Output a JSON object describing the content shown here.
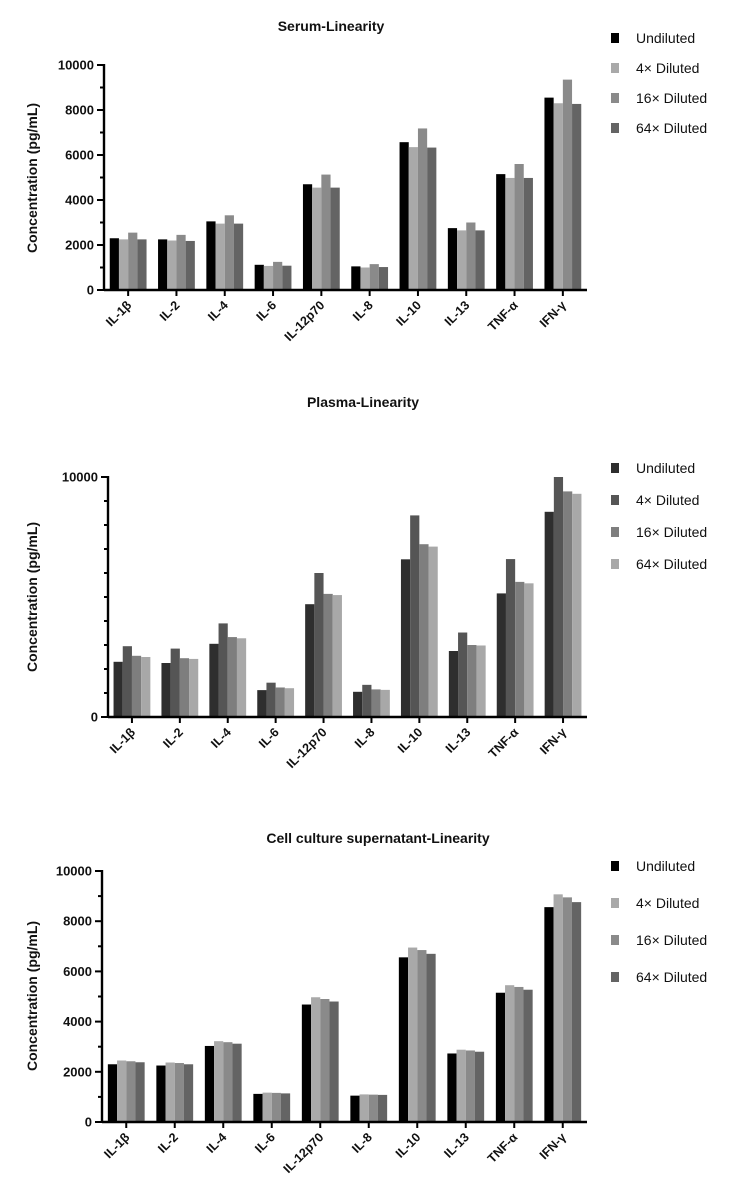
{
  "chart_data": [
    {
      "type": "bar",
      "title": "Serum-Linearity",
      "xlabel": "",
      "ylabel": "Concentration (pg/mL)",
      "ylim": [
        0,
        10000
      ],
      "yticks": [
        "0",
        "2000",
        "4000",
        "6000",
        "8000",
        "10000"
      ],
      "legend_position": "top-right",
      "categories": [
        "IL-1β",
        "IL-2",
        "IL-4",
        "IL-6",
        "IL-12p70",
        "IL-8",
        "IL-10",
        "IL-13",
        "TNF-α",
        "IFN-γ"
      ],
      "series": [
        {
          "name": "Undiluted",
          "color": "#000000",
          "values": [
            2300,
            2250,
            3050,
            1120,
            4700,
            1050,
            6570,
            2750,
            5150,
            8550
          ]
        },
        {
          "name": "4× Diluted",
          "color": "#a9a9a9",
          "values": [
            2250,
            2200,
            2950,
            1070,
            4550,
            1000,
            6350,
            2650,
            4980,
            8300
          ]
        },
        {
          "name": "16× Diluted",
          "color": "#8a8a8a",
          "values": [
            2550,
            2450,
            3320,
            1250,
            5130,
            1150,
            7180,
            3000,
            5600,
            9350
          ]
        },
        {
          "name": "64× Diluted",
          "color": "#646464",
          "values": [
            2250,
            2180,
            2950,
            1080,
            4550,
            1020,
            6330,
            2650,
            4980,
            8270
          ]
        }
      ]
    },
    {
      "type": "bar",
      "title": "Plasma-Linearity",
      "xlabel": "",
      "ylabel": "Concentration (pg/mL)",
      "ylim": [
        0,
        10000
      ],
      "yticks": [
        "0",
        "10000"
      ],
      "legend_position": "top-right",
      "categories": [
        "IL-1β",
        "IL-2",
        "IL-4",
        "IL-6",
        "IL-12p70",
        "IL-8",
        "IL-10",
        "IL-13",
        "TNF-α",
        "IFN-γ"
      ],
      "series": [
        {
          "name": "Undiluted",
          "color": "#2e2e2e",
          "values": [
            2300,
            2250,
            3050,
            1120,
            4700,
            1050,
            6570,
            2750,
            5150,
            8550
          ]
        },
        {
          "name": "4× Diluted",
          "color": "#555555",
          "values": [
            2950,
            2850,
            3900,
            1430,
            6000,
            1340,
            8400,
            3520,
            6580,
            10000
          ]
        },
        {
          "name": "16× Diluted",
          "color": "#7e7e7e",
          "values": [
            2550,
            2450,
            3330,
            1230,
            5130,
            1150,
            7200,
            3000,
            5630,
            9400
          ]
        },
        {
          "name": "64× Diluted",
          "color": "#a8a8a8",
          "values": [
            2500,
            2420,
            3280,
            1200,
            5080,
            1130,
            7100,
            2980,
            5570,
            9300
          ]
        }
      ]
    },
    {
      "type": "bar",
      "title": "Cell culture supernatant-Linearity",
      "xlabel": "",
      "ylabel": "Concentration (pg/mL)",
      "ylim": [
        0,
        10000
      ],
      "yticks": [
        "0",
        "2000",
        "4000",
        "6000",
        "8000",
        "10000"
      ],
      "legend_position": "top-right",
      "categories": [
        "IL-1β",
        "IL-2",
        "IL-4",
        "IL-6",
        "IL-12p70",
        "IL-8",
        "IL-10",
        "IL-13",
        "TNF-α",
        "IFN-γ"
      ],
      "series": [
        {
          "name": "Undiluted",
          "color": "#000000",
          "values": [
            2300,
            2250,
            3030,
            1120,
            4680,
            1050,
            6560,
            2730,
            5150,
            8560
          ]
        },
        {
          "name": "4× Diluted",
          "color": "#a9a9a9",
          "values": [
            2450,
            2370,
            3220,
            1170,
            4970,
            1100,
            6950,
            2880,
            5450,
            9070
          ]
        },
        {
          "name": "16× Diluted",
          "color": "#8a8a8a",
          "values": [
            2420,
            2350,
            3180,
            1160,
            4900,
            1090,
            6850,
            2850,
            5380,
            8950
          ]
        },
        {
          "name": "64× Diluted",
          "color": "#646464",
          "values": [
            2380,
            2300,
            3120,
            1140,
            4800,
            1080,
            6700,
            2800,
            5270,
            8760
          ]
        }
      ]
    }
  ]
}
